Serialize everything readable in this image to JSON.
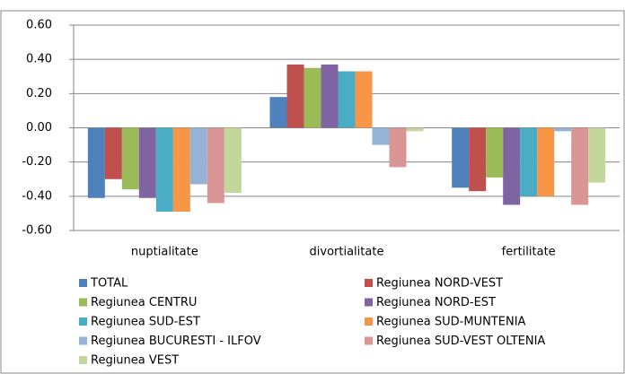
{
  "chart_data": {
    "type": "bar",
    "categories": [
      "nuptialitate",
      "divortialitate",
      "fertilitate"
    ],
    "series": [
      {
        "name": "TOTAL",
        "color": "#4f81bd",
        "values": [
          -0.41,
          0.18,
          -0.35
        ]
      },
      {
        "name": "Regiunea NORD-VEST",
        "color": "#c0504d",
        "values": [
          -0.3,
          0.37,
          -0.37
        ]
      },
      {
        "name": "Regiunea CENTRU",
        "color": "#9bbb59",
        "values": [
          -0.36,
          0.35,
          -0.29
        ]
      },
      {
        "name": "Regiunea NORD-EST",
        "color": "#8064a2",
        "values": [
          -0.41,
          0.37,
          -0.45
        ]
      },
      {
        "name": "Regiunea SUD-EST",
        "color": "#4bacc6",
        "values": [
          -0.49,
          0.33,
          -0.4
        ]
      },
      {
        "name": "Regiunea SUD-MUNTENIA",
        "color": "#f79646",
        "values": [
          -0.49,
          0.33,
          -0.4
        ]
      },
      {
        "name": "Regiunea BUCURESTI - ILFOV",
        "color": "#95b3d7",
        "values": [
          -0.33,
          -0.1,
          -0.02
        ]
      },
      {
        "name": "Regiunea SUD-VEST OLTENIA",
        "color": "#d99694",
        "values": [
          -0.44,
          -0.23,
          -0.45
        ]
      },
      {
        "name": "Regiunea VEST",
        "color": "#c3d69b",
        "values": [
          -0.38,
          -0.02,
          -0.32
        ]
      }
    ],
    "ylim": [
      -0.6,
      0.6
    ],
    "yticks": [
      {
        "value": 0.6,
        "label": "0.60"
      },
      {
        "value": 0.4,
        "label": "0.40"
      },
      {
        "value": 0.2,
        "label": "0.20"
      },
      {
        "value": 0,
        "label": "0.00"
      },
      {
        "value": -0.2,
        "label": "-0.20"
      },
      {
        "value": -0.4,
        "label": "-0.40"
      },
      {
        "value": -0.6,
        "label": "-0.60"
      }
    ],
    "grid": true
  }
}
